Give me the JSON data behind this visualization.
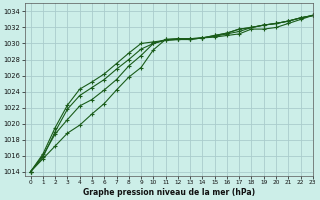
{
  "title": "Graphe pression niveau de la mer (hPa)",
  "bg_color": "#cceee8",
  "grid_color": "#aacccc",
  "line_color": "#1a5c1a",
  "xlim": [
    -0.5,
    23
  ],
  "ylim": [
    1013.5,
    1035.0
  ],
  "yticks": [
    1014,
    1016,
    1018,
    1020,
    1022,
    1024,
    1026,
    1028,
    1030,
    1032,
    1034
  ],
  "xticks": [
    0,
    1,
    2,
    3,
    4,
    5,
    6,
    7,
    8,
    9,
    10,
    11,
    12,
    13,
    14,
    15,
    16,
    17,
    18,
    19,
    20,
    21,
    22,
    23
  ],
  "series": [
    [
      1014.0,
      1015.6,
      1017.2,
      1018.8,
      1019.8,
      1021.2,
      1022.5,
      1024.2,
      1025.8,
      1027.0,
      1029.2,
      1030.5,
      1030.6,
      1030.6,
      1030.7,
      1030.8,
      1031.0,
      1031.2,
      1031.8,
      1031.8,
      1032.0,
      1032.5,
      1033.0,
      1033.5
    ],
    [
      1014.0,
      1016.0,
      1018.7,
      1020.5,
      1022.2,
      1023.0,
      1024.2,
      1025.5,
      1027.2,
      1028.5,
      1030.0,
      1030.5,
      1030.6,
      1030.6,
      1030.7,
      1030.9,
      1031.2,
      1031.5,
      1032.0,
      1032.3,
      1032.5,
      1032.8,
      1033.2,
      1033.5
    ],
    [
      1014.0,
      1015.8,
      1019.0,
      1021.8,
      1023.5,
      1024.5,
      1025.5,
      1026.8,
      1028.0,
      1029.3,
      1030.0,
      1030.4,
      1030.5,
      1030.5,
      1030.7,
      1031.0,
      1031.3,
      1031.8,
      1032.0,
      1032.3,
      1032.5,
      1032.8,
      1033.2,
      1033.5
    ],
    [
      1014.0,
      1016.2,
      1019.5,
      1022.3,
      1024.3,
      1025.2,
      1026.2,
      1027.5,
      1028.8,
      1030.0,
      1030.2,
      1030.4,
      1030.5,
      1030.5,
      1030.7,
      1031.0,
      1031.3,
      1031.8,
      1032.0,
      1032.3,
      1032.5,
      1032.8,
      1033.2,
      1033.5
    ]
  ]
}
